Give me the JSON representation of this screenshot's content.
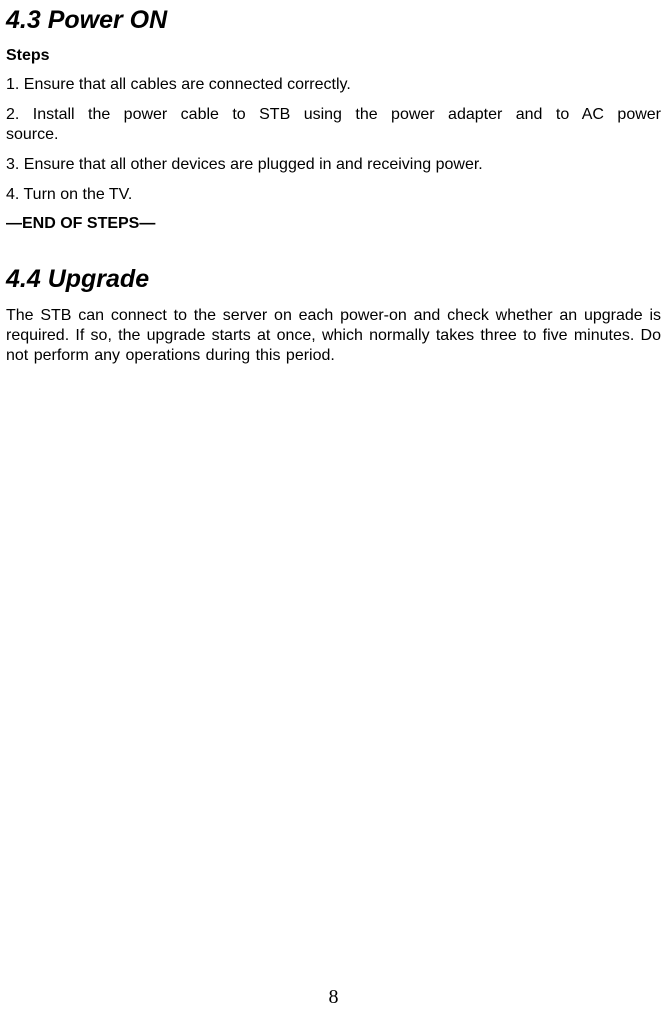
{
  "section_43": {
    "heading": "4.3 Power ON",
    "steps_label": "Steps",
    "step1": "1. Ensure that all cables are connected correctly.",
    "step2": "2. Install the power cable to STB using the power adapter and to AC power source.",
    "step3": "3. Ensure that all other devices are plugged in and receiving power.",
    "step4": "4. Turn on the TV.",
    "end_of_steps": "—END OF STEPS—"
  },
  "section_44": {
    "heading": "4.4 Upgrade",
    "body": "The STB can connect to the server on each power-on and check whether an upgrade is required. If so, the upgrade starts at once, which normally takes three to five minutes. Do not perform any operations during this period."
  },
  "page_number": "8",
  "colors": {
    "background": "#ffffff",
    "text": "#000000"
  },
  "typography": {
    "heading_fontsize": 25,
    "body_fontsize": 16,
    "page_number_fontsize": 20,
    "font_family": "Arial"
  }
}
